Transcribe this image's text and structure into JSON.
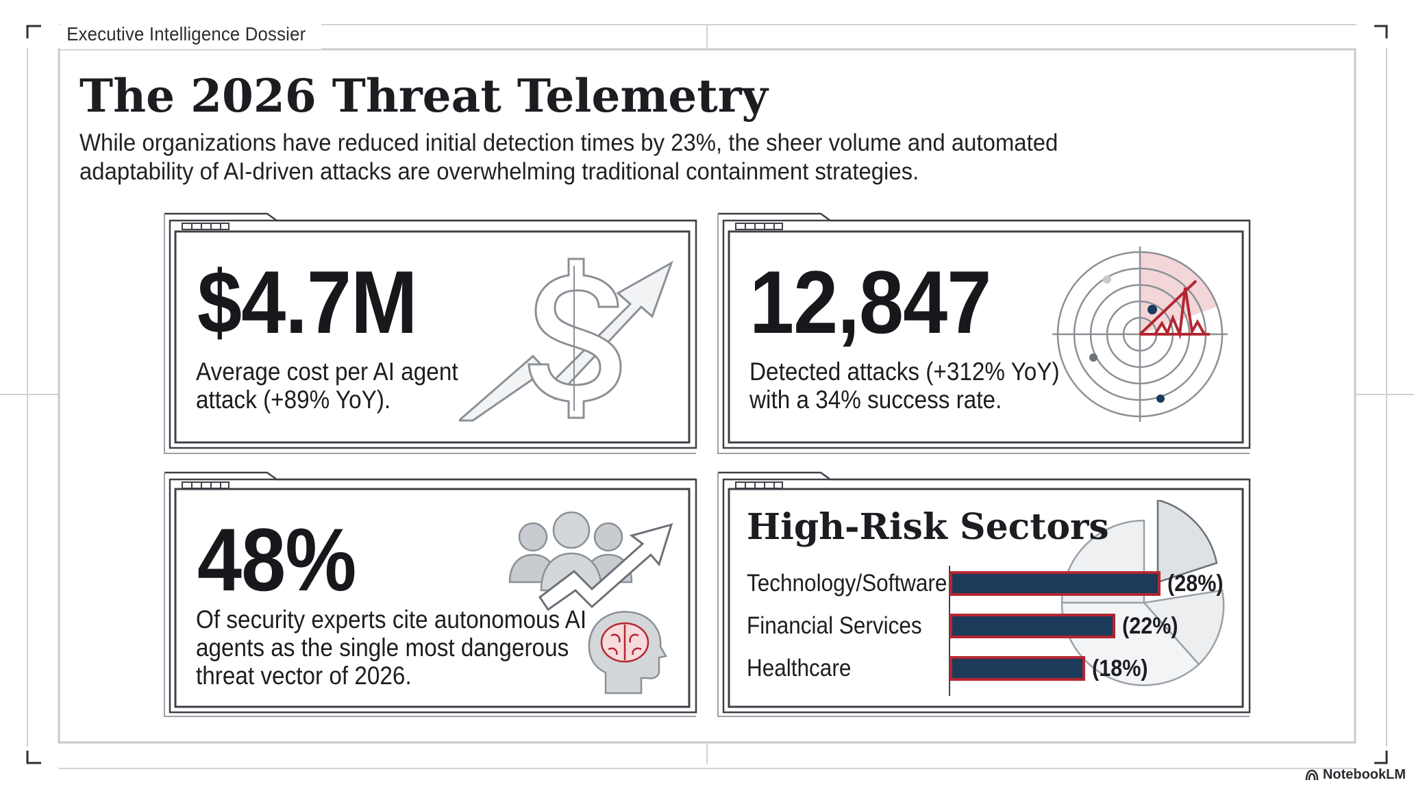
{
  "header": {
    "dossier_label": "Executive Intelligence Dossier"
  },
  "title": "The 2026 Threat Telemetry",
  "subtitle": "While organizations have reduced initial detection times by 23%, the sheer volume and automated adaptability of AI-driven attacks are overwhelming traditional containment strategies.",
  "cards": {
    "cost": {
      "stat": "$4.7M",
      "description": "Average cost per AI agent attack (+89% YoY).",
      "icon": "dollar-trend-up-icon"
    },
    "attacks": {
      "stat": "12,847",
      "description": "Detected attacks (+312% YoY) with a 34% success rate.",
      "icon": "radar-scope-icon"
    },
    "experts": {
      "stat": "48%",
      "description": "Of security experts cite autonomous AI agents as the single most dangerous threat vector of 2026.",
      "icon": "people-growth-brain-icon"
    },
    "sectors": {
      "heading": "High-Risk Sectors",
      "items": [
        {
          "label": "Technology/Software",
          "value": 28,
          "display": "(28%)"
        },
        {
          "label": "Financial Services",
          "value": 22,
          "display": "(22%)"
        },
        {
          "label": "Healthcare",
          "value": 18,
          "display": "(18%)"
        }
      ],
      "icon": "pie-chart-icon"
    }
  },
  "colors": {
    "accent": "#b32631",
    "bar_fill": "#1c3a59",
    "text": "#1b1d21",
    "frame": "#3d4146"
  },
  "brand": "NotebookLM"
}
